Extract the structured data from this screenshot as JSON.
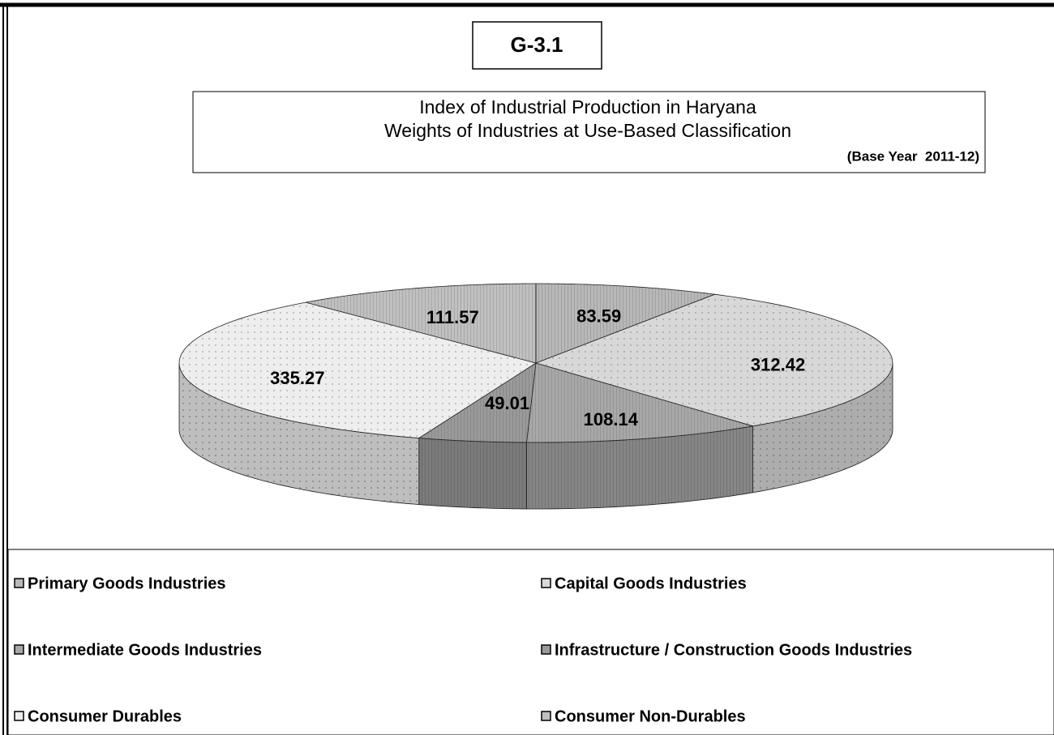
{
  "chart_data": {
    "type": "pie3d",
    "chart_id": "G-3.1",
    "title": "Index of Industrial Production in Haryana",
    "subtitle": "Weights of Industries at Use-Based Classification",
    "note": "(Base Year  2011-12)",
    "categories": [
      "Primary Goods Industries",
      "Capital Goods Industries",
      "Intermediate Goods Industries",
      "Infrastructure / Construction Goods Industries",
      "Consumer Durables",
      "Consumer Non-Durables"
    ],
    "values": [
      83.59,
      312.42,
      108.14,
      49.01,
      335.27,
      111.57
    ],
    "colors": [
      "#b8b8b8",
      "#d8d8d8",
      "#a8a8a8",
      "#9a9a9a",
      "#eeeeee",
      "#c0c0c0"
    ],
    "legend": "bottom"
  }
}
